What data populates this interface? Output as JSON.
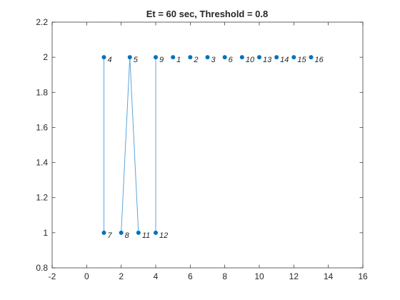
{
  "chart_data": {
    "type": "scatter",
    "title": "Et = 60 sec, Threshold = 0.8",
    "xlabel": "",
    "ylabel": "",
    "xlim": [
      -2,
      16
    ],
    "ylim": [
      0.8,
      2.2
    ],
    "xticks": [
      -2,
      0,
      2,
      4,
      6,
      8,
      10,
      12,
      14,
      16
    ],
    "yticks": [
      0.8,
      1,
      1.2,
      1.4,
      1.6,
      1.8,
      2,
      2.2
    ],
    "xtick_labels": [
      "-2",
      "0",
      "2",
      "4",
      "6",
      "8",
      "10",
      "12",
      "14",
      "16"
    ],
    "ytick_labels": [
      "0.8",
      "1",
      "1.2",
      "1.4",
      "1.6",
      "1.8",
      "2",
      "2.2"
    ],
    "grid": false,
    "marker_color": "#0072BD",
    "line_color": "#5DA5DA",
    "points": [
      {
        "label": "4",
        "x": 1,
        "y": 2
      },
      {
        "label": "5",
        "x": 2.5,
        "y": 2
      },
      {
        "label": "9",
        "x": 4,
        "y": 2
      },
      {
        "label": "1",
        "x": 5,
        "y": 2
      },
      {
        "label": "2",
        "x": 6,
        "y": 2
      },
      {
        "label": "3",
        "x": 7,
        "y": 2
      },
      {
        "label": "6",
        "x": 8,
        "y": 2
      },
      {
        "label": "10",
        "x": 9,
        "y": 2
      },
      {
        "label": "13",
        "x": 10,
        "y": 2
      },
      {
        "label": "14",
        "x": 11,
        "y": 2
      },
      {
        "label": "15",
        "x": 12,
        "y": 2
      },
      {
        "label": "16",
        "x": 13,
        "y": 2
      },
      {
        "label": "7",
        "x": 1,
        "y": 1
      },
      {
        "label": "8",
        "x": 2,
        "y": 1
      },
      {
        "label": "11",
        "x": 3,
        "y": 1
      },
      {
        "label": "12",
        "x": 4,
        "y": 1
      }
    ],
    "edges": [
      {
        "from": "4",
        "to": "7"
      },
      {
        "from": "5",
        "to": "8"
      },
      {
        "from": "5",
        "to": "11"
      },
      {
        "from": "9",
        "to": "12"
      }
    ]
  }
}
